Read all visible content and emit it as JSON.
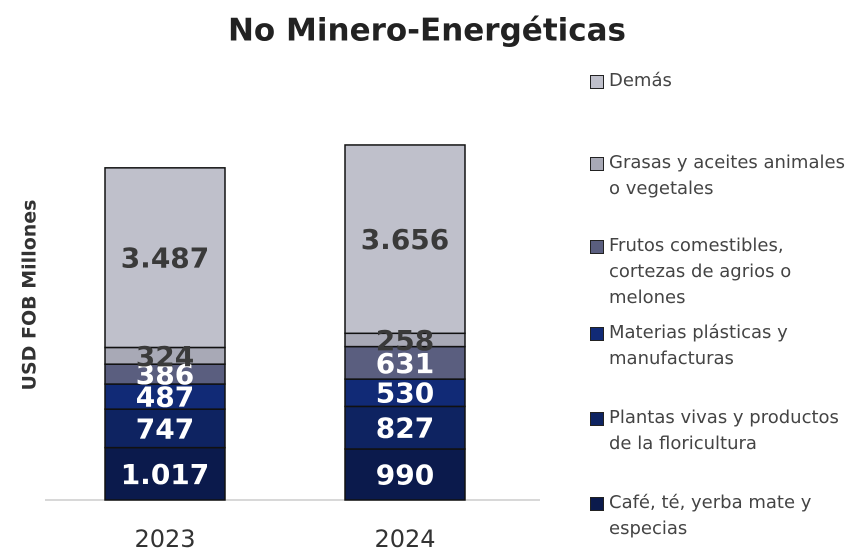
{
  "chart_data": {
    "type": "stacked_bar",
    "title": "No Minero-Energéticas",
    "y_label": "USD FOB Millones",
    "categories": [
      "2023",
      "2024"
    ],
    "ylim": [
      0,
      7000
    ],
    "series": [
      {
        "name": "Café, té, yerba mate y especias",
        "color": "#0b1a4c",
        "label_color": "#ffffff",
        "values": [
          1017,
          990
        ],
        "value_labels": [
          "1.017",
          "990"
        ]
      },
      {
        "name": "Plantas vivas y productos de la floricultura",
        "color": "#0e2361",
        "label_color": "#ffffff",
        "values": [
          747,
          827
        ]
      },
      {
        "name": "Materias plásticas y manufacturas",
        "color": "#112a76",
        "label_color": "#ffffff",
        "values": [
          487,
          530
        ]
      },
      {
        "name": "Frutos comestibles, cortezas de agrios o melones",
        "color": "#5a5e7f",
        "label_color": "#ffffff",
        "values": [
          386,
          631
        ]
      },
      {
        "name": "Grasas y aceites animales o vegetales",
        "color": "#a8a9b6",
        "label_color": "#3a3a3a",
        "values": [
          324,
          258
        ]
      },
      {
        "name": "Demás",
        "color": "#bfc0cb",
        "label_color": "#3a3a3a",
        "values": [
          3487,
          3656
        ],
        "value_labels": [
          "3.487",
          "3.656"
        ]
      }
    ]
  }
}
